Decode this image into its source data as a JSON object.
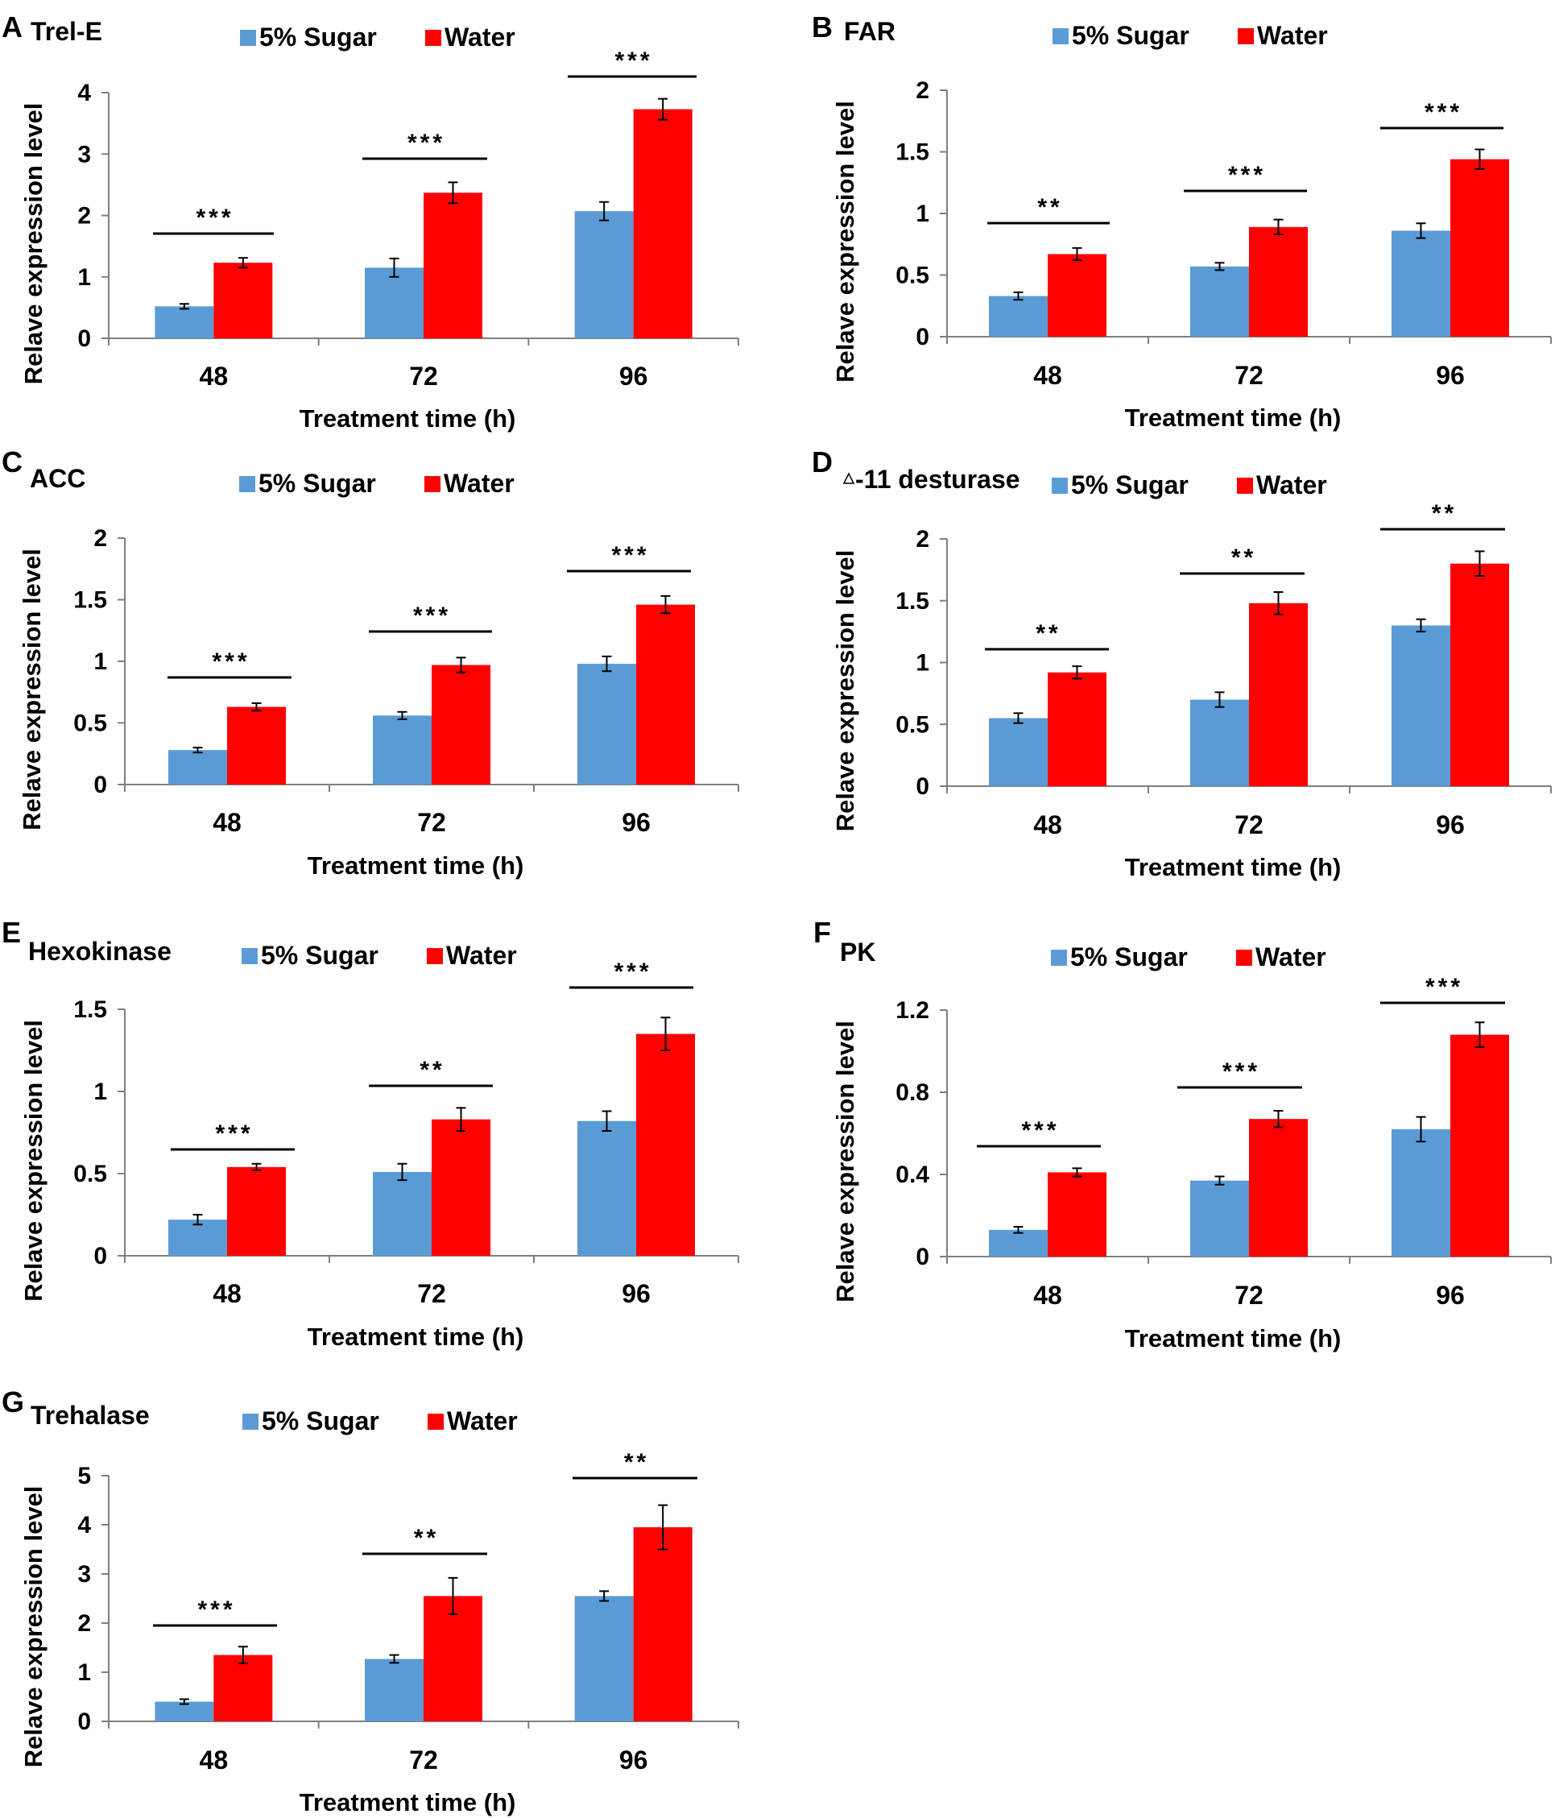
{
  "colors": {
    "sugar": "#5b9bd5",
    "water": "#ff0000",
    "axis": "#7f7f7f",
    "ink": "#000000"
  },
  "legend": {
    "sugar": "5% Sugar",
    "water": "Water"
  },
  "chart_data": [
    {
      "type": "bar",
      "panel": "A",
      "title": "Trel-E",
      "title_has_triangle": false,
      "categories": [
        "48",
        "72",
        "96"
      ],
      "series": [
        {
          "name": "5% Sugar",
          "values": [
            0.52,
            1.15,
            2.07
          ],
          "errors": [
            0.04,
            0.15,
            0.15
          ]
        },
        {
          "name": "Water",
          "values": [
            1.23,
            2.37,
            3.73
          ],
          "errors": [
            0.08,
            0.17,
            0.17
          ]
        }
      ],
      "significance": [
        "***",
        "***",
        "***"
      ],
      "xlabel": "Treatment time (h)",
      "ylabel": "Relave expression level",
      "ylim": [
        0,
        4
      ],
      "yticks": [
        "0",
        "1",
        "2",
        "3",
        "4"
      ],
      "grid": false,
      "legend_position": "top"
    },
    {
      "type": "bar",
      "panel": "B",
      "title": "FAR",
      "title_has_triangle": false,
      "categories": [
        "48",
        "72",
        "96"
      ],
      "series": [
        {
          "name": "5% Sugar",
          "values": [
            0.33,
            0.57,
            0.86
          ],
          "errors": [
            0.03,
            0.03,
            0.06
          ]
        },
        {
          "name": "Water",
          "values": [
            0.67,
            0.89,
            1.44
          ],
          "errors": [
            0.05,
            0.06,
            0.08
          ]
        }
      ],
      "significance": [
        "**",
        "***",
        "***"
      ],
      "xlabel": "Treatment time (h)",
      "ylabel": "Relave expression level",
      "ylim": [
        0,
        2
      ],
      "yticks": [
        "0",
        "0.5",
        "1",
        "1.5",
        "2"
      ],
      "grid": false,
      "legend_position": "top"
    },
    {
      "type": "bar",
      "panel": "C",
      "title": "ACC",
      "title_has_triangle": false,
      "categories": [
        "48",
        "72",
        "96"
      ],
      "series": [
        {
          "name": "5% Sugar",
          "values": [
            0.28,
            0.56,
            0.98
          ],
          "errors": [
            0.02,
            0.03,
            0.06
          ]
        },
        {
          "name": "Water",
          "values": [
            0.63,
            0.97,
            1.46
          ],
          "errors": [
            0.03,
            0.06,
            0.07
          ]
        }
      ],
      "significance": [
        "***",
        "***",
        "***"
      ],
      "xlabel": "Treatment time (h)",
      "ylabel": "Relave expression level",
      "ylim": [
        0,
        2
      ],
      "yticks": [
        "0",
        "0.5",
        "1",
        "1.5",
        "2"
      ],
      "grid": false,
      "legend_position": "top"
    },
    {
      "type": "bar",
      "panel": "D",
      "title": "-11 desturase",
      "title_has_triangle": true,
      "categories": [
        "48",
        "72",
        "96"
      ],
      "series": [
        {
          "name": "5% Sugar",
          "values": [
            0.55,
            0.7,
            1.3
          ],
          "errors": [
            0.04,
            0.06,
            0.05
          ]
        },
        {
          "name": "Water",
          "values": [
            0.92,
            1.48,
            1.8
          ],
          "errors": [
            0.05,
            0.09,
            0.1
          ]
        }
      ],
      "significance": [
        "**",
        "**",
        "**"
      ],
      "xlabel": "Treatment time (h)",
      "ylabel": "Relave expression level",
      "ylim": [
        0,
        2
      ],
      "yticks": [
        "0",
        "0.5",
        "1",
        "1.5",
        "2"
      ],
      "grid": false,
      "legend_position": "top"
    },
    {
      "type": "bar",
      "panel": "E",
      "title": "Hexokinase",
      "title_has_triangle": false,
      "categories": [
        "48",
        "72",
        "96"
      ],
      "series": [
        {
          "name": "5% Sugar",
          "values": [
            0.22,
            0.51,
            0.82
          ],
          "errors": [
            0.03,
            0.05,
            0.06
          ]
        },
        {
          "name": "Water",
          "values": [
            0.54,
            0.83,
            1.35
          ],
          "errors": [
            0.02,
            0.07,
            0.1
          ]
        }
      ],
      "significance": [
        "***",
        "**",
        "***"
      ],
      "xlabel": "Treatment time (h)",
      "ylabel": "Relave expression level",
      "ylim": [
        0,
        1.5
      ],
      "yticks": [
        "0",
        "0.5",
        "1",
        "1.5"
      ],
      "grid": false,
      "legend_position": "top"
    },
    {
      "type": "bar",
      "panel": "F",
      "title": "PK",
      "title_has_triangle": false,
      "categories": [
        "48",
        "72",
        "96"
      ],
      "series": [
        {
          "name": "5% Sugar",
          "values": [
            0.13,
            0.37,
            0.62
          ],
          "errors": [
            0.015,
            0.02,
            0.06
          ]
        },
        {
          "name": "Water",
          "values": [
            0.41,
            0.67,
            1.08
          ],
          "errors": [
            0.02,
            0.04,
            0.06
          ]
        }
      ],
      "significance": [
        "***",
        "***",
        "***"
      ],
      "xlabel": "Treatment time (h)",
      "ylabel": "Relave expression level",
      "ylim": [
        0,
        1.2
      ],
      "yticks": [
        "0",
        "0.4",
        "0.8",
        "1.2"
      ],
      "grid": false,
      "legend_position": "top"
    },
    {
      "type": "bar",
      "panel": "G",
      "title": "Trehalase",
      "title_has_triangle": false,
      "categories": [
        "48",
        "72",
        "96"
      ],
      "series": [
        {
          "name": "5% Sugar",
          "values": [
            0.4,
            1.27,
            2.55
          ],
          "errors": [
            0.05,
            0.08,
            0.1
          ]
        },
        {
          "name": "Water",
          "values": [
            1.35,
            2.55,
            3.95
          ],
          "errors": [
            0.17,
            0.37,
            0.45
          ]
        }
      ],
      "significance": [
        "***",
        "**",
        "**"
      ],
      "xlabel": "Treatment time (h)",
      "ylabel": "Relave expression level",
      "ylim": [
        0,
        5
      ],
      "yticks": [
        "0",
        "1",
        "2",
        "3",
        "4",
        "5"
      ],
      "grid": false,
      "legend_position": "top"
    }
  ]
}
